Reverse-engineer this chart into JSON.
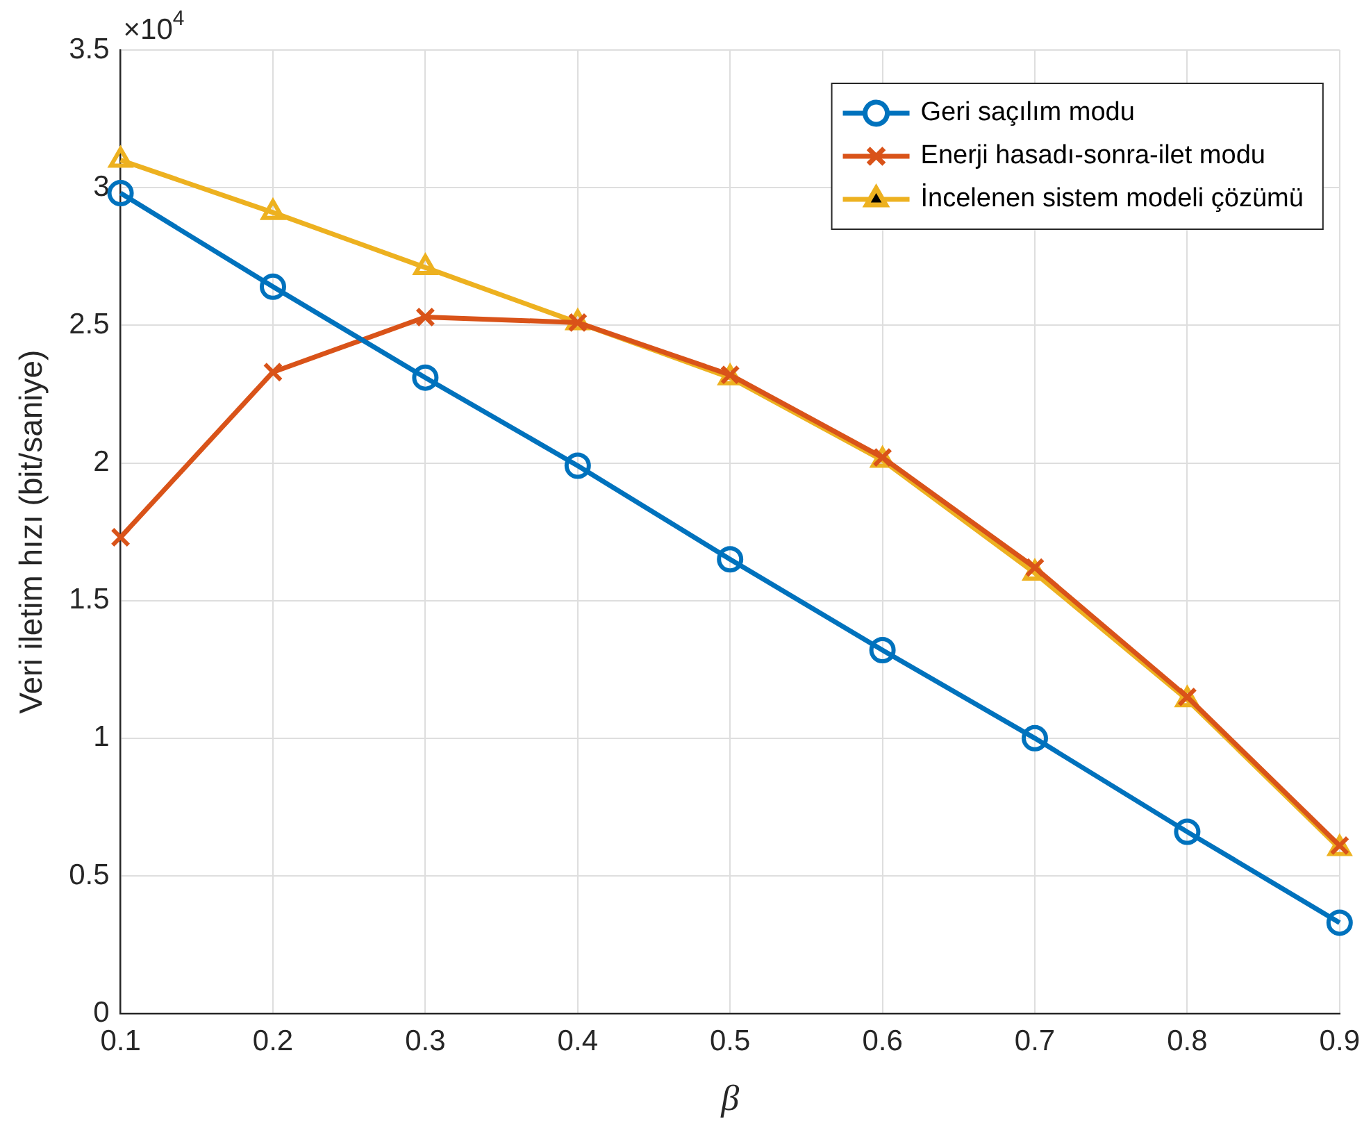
{
  "chart_data": {
    "type": "line",
    "xlabel": "β",
    "ylabel": "Veri iletim hızı (bit/saniye)",
    "annotations": [
      "×10$^{4}$"
    ],
    "x": [
      0.1,
      0.2,
      0.3,
      0.4,
      0.5,
      0.6,
      0.7,
      0.8,
      0.9
    ],
    "xlim": [
      0.1,
      0.9
    ],
    "xticks": [
      0.1,
      0.2,
      0.3,
      0.4,
      0.5,
      0.6,
      0.7,
      0.8,
      0.9
    ],
    "ylim": [
      0,
      3.5
    ],
    "yticks": [
      0,
      0.5,
      1,
      1.5,
      2,
      2.5,
      3,
      3.5
    ],
    "grid": true,
    "legend": "top right",
    "line_style": "solid",
    "series": [
      {
        "name": "Geri saçılım modu",
        "color": "#0072bd",
        "marker": "circle",
        "values": [
          2.98,
          2.64,
          2.31,
          1.99,
          1.65,
          1.32,
          1.0,
          0.66,
          0.33
        ]
      },
      {
        "name": "Enerji hasadı-sonra-ilet modu",
        "color": "#d95319",
        "marker": "cross",
        "values": [
          1.73,
          2.33,
          2.53,
          2.51,
          2.32,
          2.02,
          1.62,
          1.15,
          0.61
        ]
      },
      {
        "name": "İncelenen sistem modeli çözümü",
        "color": "#edb120",
        "marker": "triangle",
        "values": [
          3.1,
          2.91,
          2.71,
          2.51,
          2.31,
          2.01,
          1.6,
          1.14,
          0.6
        ]
      }
    ]
  }
}
